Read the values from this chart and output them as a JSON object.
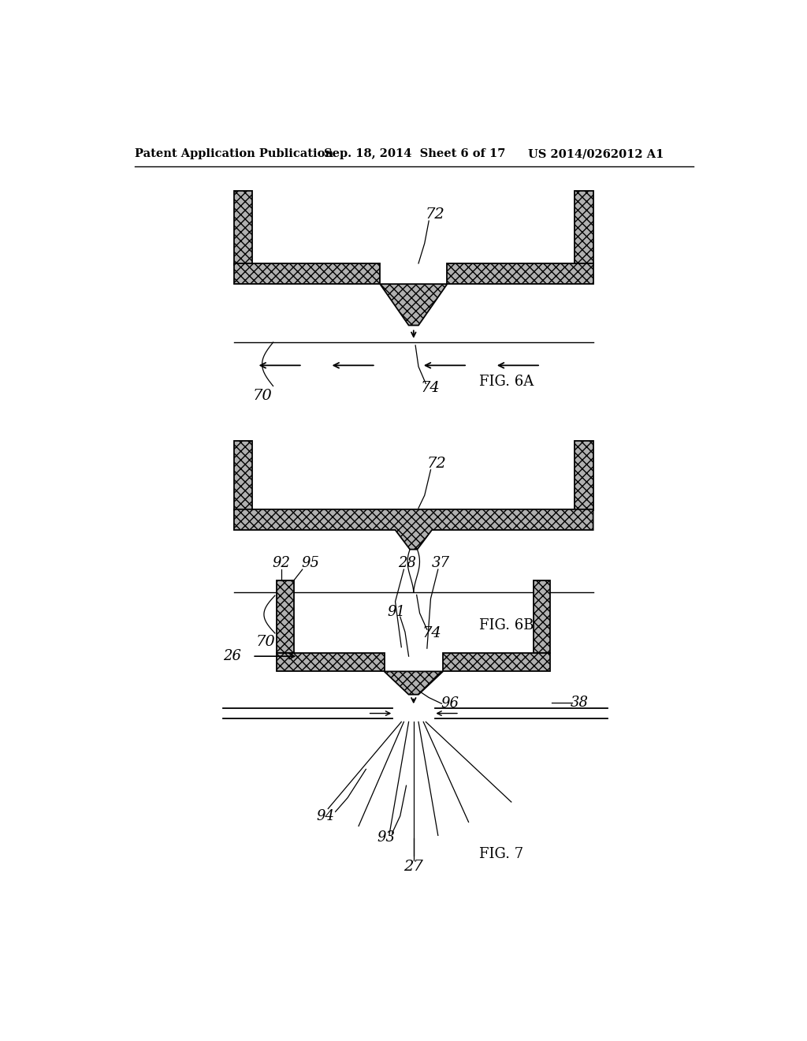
{
  "bg_color": "#ffffff",
  "header_left": "Patent Application Publication",
  "header_mid": "Sep. 18, 2014  Sheet 6 of 17",
  "header_right": "US 2014/0262012 A1",
  "header_fontsize": 10.5,
  "fig6a_label": "FIG. 6A",
  "fig6b_label": "FIG. 6B",
  "fig7_label": "FIG. 7",
  "line_color": "#000000",
  "fill_color": "#b0b0b0",
  "hatch_pattern": "xxxx"
}
